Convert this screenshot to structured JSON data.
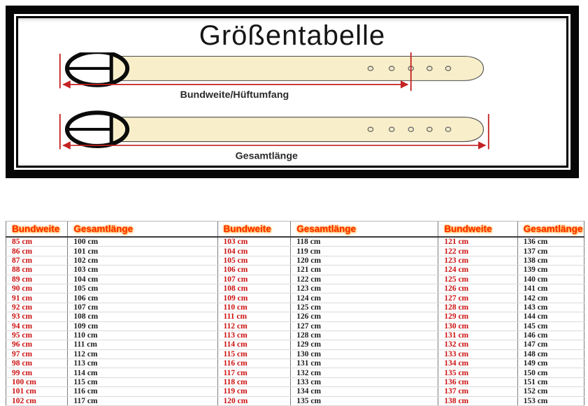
{
  "title": "Größentabelle",
  "diagram": {
    "top_label": "Bundweite/Hüftumfang",
    "bottom_label": "Gesamtlänge",
    "belt_fill": "#f8efca",
    "belt_outline": "#4d4d4d",
    "buckle_color": "#0b0b0b",
    "measure_line_color": "#c42222"
  },
  "table": {
    "columns": [
      {
        "label": "Bundweite",
        "type": "bundweite",
        "width": "10.3%"
      },
      {
        "label": "Gesamtlänge",
        "type": "gesamt",
        "width": "26.5%"
      },
      {
        "label": "Bundweite",
        "type": "bundweite",
        "width": "12.4%"
      },
      {
        "label": "Gesamtlänge",
        "type": "gesamt",
        "width": "26.1%"
      },
      {
        "label": "Bundweite",
        "type": "bundweite",
        "width": "13.5%"
      },
      {
        "label": "Gesamtlänge",
        "type": "gesamt",
        "width": "11.2%"
      }
    ],
    "header_color": "#ff2800",
    "bundweite_color": "#cc1111",
    "gesamt_color": "#1e1e1e",
    "rows": [
      [
        "85 cm",
        "100 cm",
        "103 cm",
        "118 cm",
        "121 cm",
        "136 cm"
      ],
      [
        "86 cm",
        "101 cm",
        "104 cm",
        "119 cm",
        "122 cm",
        "137 cm"
      ],
      [
        "87 cm",
        "102 cm",
        "105 cm",
        "120 cm",
        "123 cm",
        "138 cm"
      ],
      [
        "88 cm",
        "103 cm",
        "106 cm",
        "121 cm",
        "124 cm",
        "139 cm"
      ],
      [
        "89 cm",
        "104 cm",
        "107 cm",
        "122 cm",
        "125 cm",
        "140 cm"
      ],
      [
        "90 cm",
        "105 cm",
        "108 cm",
        "123 cm",
        "126 cm",
        "141 cm"
      ],
      [
        "91 cm",
        "106 cm",
        "109 cm",
        "124 cm",
        "127 cm",
        "142 cm"
      ],
      [
        "92 cm",
        "107 cm",
        "110 cm",
        "125 cm",
        "128 cm",
        "143 cm"
      ],
      [
        "93 cm",
        "108 cm",
        "111 cm",
        "126 cm",
        "129 cm",
        "144 cm"
      ],
      [
        "94 cm",
        "109 cm",
        "112 cm",
        "127 cm",
        "130 cm",
        "145 cm"
      ],
      [
        "95 cm",
        "110 cm",
        "113 cm",
        "128 cm",
        "131 cm",
        "146 cm"
      ],
      [
        "96 cm",
        "111 cm",
        "114 cm",
        "129 cm",
        "132 cm",
        "147 cm"
      ],
      [
        "97 cm",
        "112 cm",
        "115 cm",
        "130 cm",
        "133 cm",
        "148 cm"
      ],
      [
        "98 cm",
        "113 cm",
        "116 cm",
        "131 cm",
        "134 cm",
        "149 cm"
      ],
      [
        "99 cm",
        "114 cm",
        "117 cm",
        "132 cm",
        "135 cm",
        "150 cm"
      ],
      [
        "100 cm",
        "115 cm",
        "118 cm",
        "133 cm",
        "136 cm",
        "151 cm"
      ],
      [
        "101 cm",
        "116 cm",
        "119 cm",
        "134 cm",
        "137 cm",
        "152 cm"
      ],
      [
        "102 cm",
        "117 cm",
        "120 cm",
        "135 cm",
        "138 cm",
        "153 cm"
      ]
    ]
  }
}
